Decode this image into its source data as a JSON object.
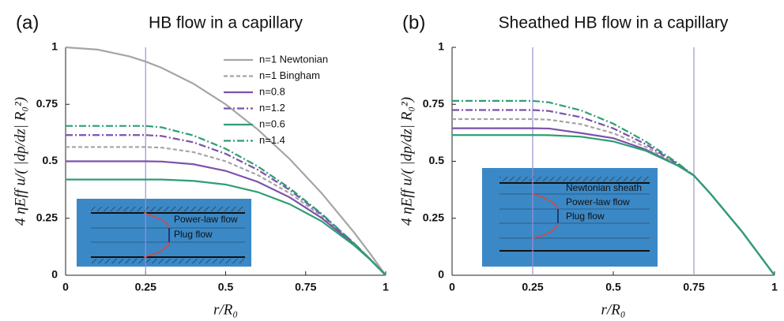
{
  "chart_data": [
    {
      "type": "line",
      "panel_label": "(a)",
      "title": "HB flow in a capillary",
      "x_label": "r/R₀",
      "y_label": "4 ηEff u/( |dp/dz| R₀²)",
      "x": [
        0,
        0.1,
        0.2,
        0.25,
        0.3,
        0.4,
        0.5,
        0.6,
        0.7,
        0.8,
        0.9,
        0.95,
        1
      ],
      "xlim": [
        0,
        1
      ],
      "ylim": [
        0,
        1
      ],
      "xticks": [
        0,
        0.25,
        0.5,
        0.75,
        1
      ],
      "yticks": [
        0,
        0.25,
        0.5,
        0.75,
        1
      ],
      "vlines": [
        0.25
      ],
      "vline_color": "#9c8fd0",
      "legend": "upper right",
      "series": [
        {
          "name": "n=1 Newtonian",
          "color": "#a5a5a5",
          "dash": "solid",
          "values": [
            1,
            0.99,
            0.96,
            0.9375,
            0.91,
            0.84,
            0.75,
            0.64,
            0.51,
            0.36,
            0.19,
            0.0975,
            0
          ]
        },
        {
          "name": "n=1 Bingham",
          "color": "#a5a5a5",
          "dash": "dashed",
          "values": [
            0.5625,
            0.5625,
            0.5625,
            0.5625,
            0.56,
            0.54,
            0.5,
            0.44,
            0.36,
            0.26,
            0.14,
            0.0725,
            0
          ]
        },
        {
          "name": "n=0.8",
          "color": "#7b52ab",
          "dash": "solid",
          "values": [
            0.5,
            0.5,
            0.5,
            0.5,
            0.499,
            0.487,
            0.458,
            0.41,
            0.342,
            0.251,
            0.138,
            0.072,
            0
          ]
        },
        {
          "name": "n=1.2",
          "color": "#7b52ab",
          "dash": "dashdot",
          "values": [
            0.615,
            0.615,
            0.615,
            0.615,
            0.611,
            0.583,
            0.533,
            0.463,
            0.374,
            0.267,
            0.142,
            0.073,
            0
          ]
        },
        {
          "name": "n=0.6",
          "color": "#2e9e72",
          "dash": "solid",
          "values": [
            0.42,
            0.42,
            0.42,
            0.42,
            0.42,
            0.414,
            0.398,
            0.365,
            0.312,
            0.237,
            0.133,
            0.0706,
            0
          ]
        },
        {
          "name": "n=1.4",
          "color": "#2e9e72",
          "dash": "dashdot",
          "values": [
            0.655,
            0.655,
            0.655,
            0.655,
            0.649,
            0.613,
            0.555,
            0.478,
            0.382,
            0.27,
            0.142,
            0.073,
            0
          ]
        }
      ],
      "annotations": [
        "Power-law flow",
        "Plug flow"
      ]
    },
    {
      "type": "line",
      "panel_label": "(b)",
      "title": "Sheathed HB flow in a capillary",
      "x_label": "r/R₀",
      "y_label": "4 ηEff u/( |dp/dz| R₀²)",
      "x": [
        0,
        0.1,
        0.2,
        0.25,
        0.3,
        0.4,
        0.5,
        0.6,
        0.7,
        0.75,
        0.8,
        0.9,
        1
      ],
      "xlim": [
        0,
        1
      ],
      "ylim": [
        0,
        1
      ],
      "xticks": [
        0,
        0.25,
        0.5,
        0.75,
        1
      ],
      "yticks": [
        0,
        0.25,
        0.5,
        0.75,
        1
      ],
      "vlines": [
        0.25,
        0.75
      ],
      "vline_color": "#9c8fd0",
      "series": [
        {
          "color": "#a5a5a5",
          "dash": "dashed",
          "values": [
            0.685,
            0.685,
            0.685,
            0.685,
            0.6826,
            0.6627,
            0.6231,
            0.5637,
            0.4845,
            0.4375,
            0.36,
            0.19,
            0
          ]
        },
        {
          "color": "#7b52ab",
          "dash": "solid",
          "values": [
            0.645,
            0.645,
            0.645,
            0.645,
            0.6438,
            0.6237,
            0.6014,
            0.552,
            0.4813,
            0.4375,
            0.36,
            0.19,
            0
          ]
        },
        {
          "color": "#7b52ab",
          "dash": "dashdot",
          "values": [
            0.725,
            0.725,
            0.725,
            0.725,
            0.7208,
            0.6934,
            0.6443,
            0.5755,
            0.488,
            0.4375,
            0.36,
            0.19,
            0
          ]
        },
        {
          "color": "#2e9e72",
          "dash": "solid",
          "values": [
            0.615,
            0.615,
            0.615,
            0.615,
            0.6146,
            0.6079,
            0.587,
            0.5465,
            0.481,
            0.4375,
            0.36,
            0.19,
            0
          ]
        },
        {
          "color": "#2e9e72",
          "dash": "dashdot",
          "values": [
            0.765,
            0.765,
            0.765,
            0.765,
            0.7587,
            0.7234,
            0.6651,
            0.5873,
            0.4916,
            0.4375,
            0.36,
            0.19,
            0
          ]
        }
      ],
      "annotations": [
        "Newtonian sheath",
        "Power-law flow",
        "Plug flow"
      ]
    }
  ]
}
